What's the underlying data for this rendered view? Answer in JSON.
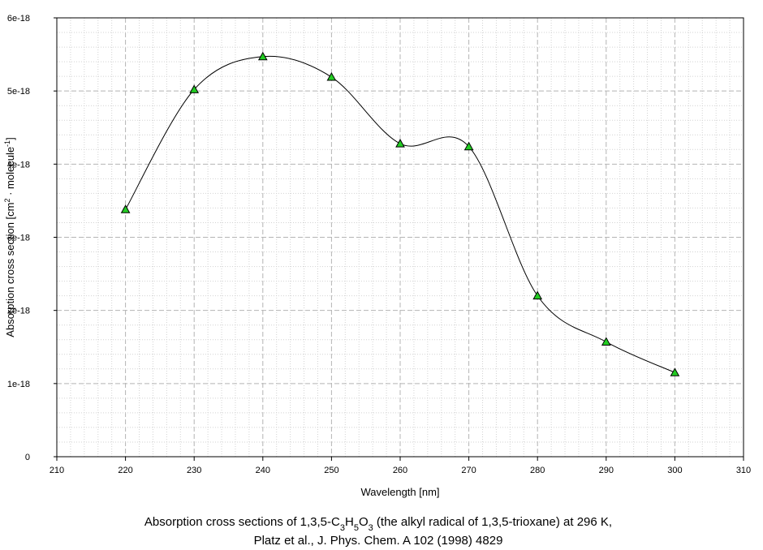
{
  "chart_data": {
    "type": "line",
    "x": [
      220,
      230,
      240,
      250,
      260,
      270,
      280,
      290,
      300
    ],
    "series": [
      {
        "values": [
          3.38e-18,
          5.02e-18,
          5.47e-18,
          5.19e-18,
          4.28e-18,
          4.24e-18,
          2.2e-18,
          1.57e-18,
          1.15e-18
        ],
        "marker": "triangle",
        "marker_color": "#22cc22",
        "line_color": "#000000",
        "smoothed": true
      }
    ],
    "xlabel": "Wavelength [nm]",
    "ylabel": {
      "parts": [
        {
          "text": "Absorption cross section [cm",
          "sup": false
        },
        {
          "text": "2",
          "sup": true
        },
        {
          "text": " · molecule",
          "sup": false
        },
        {
          "text": "-1",
          "sup": true
        },
        {
          "text": "]",
          "sup": false
        }
      ]
    },
    "xlim": [
      210,
      310
    ],
    "ylim": [
      0,
      6e-18
    ],
    "x_ticks": [
      "210",
      "220",
      "230",
      "240",
      "250",
      "260",
      "270",
      "280",
      "290",
      "300",
      "310"
    ],
    "y_ticks": [
      "0",
      "1e-18",
      "2e-18",
      "3e-18",
      "4e-18",
      "5e-18",
      "6e-18"
    ],
    "grid": true,
    "legend": "none",
    "caption": {
      "line1": [
        {
          "text": "Absorption cross sections of 1,3,5-C",
          "sub": false
        },
        {
          "text": "3",
          "sub": true
        },
        {
          "text": "H",
          "sub": false
        },
        {
          "text": "5",
          "sub": true
        },
        {
          "text": "O",
          "sub": false
        },
        {
          "text": "3",
          "sub": true
        },
        {
          "text": " (the alkyl radical of 1,3,5-trioxane) at 296 K,",
          "sub": false
        }
      ],
      "line2": "Platz et al., J. Phys. Chem. A 102 (1998) 4829"
    }
  }
}
